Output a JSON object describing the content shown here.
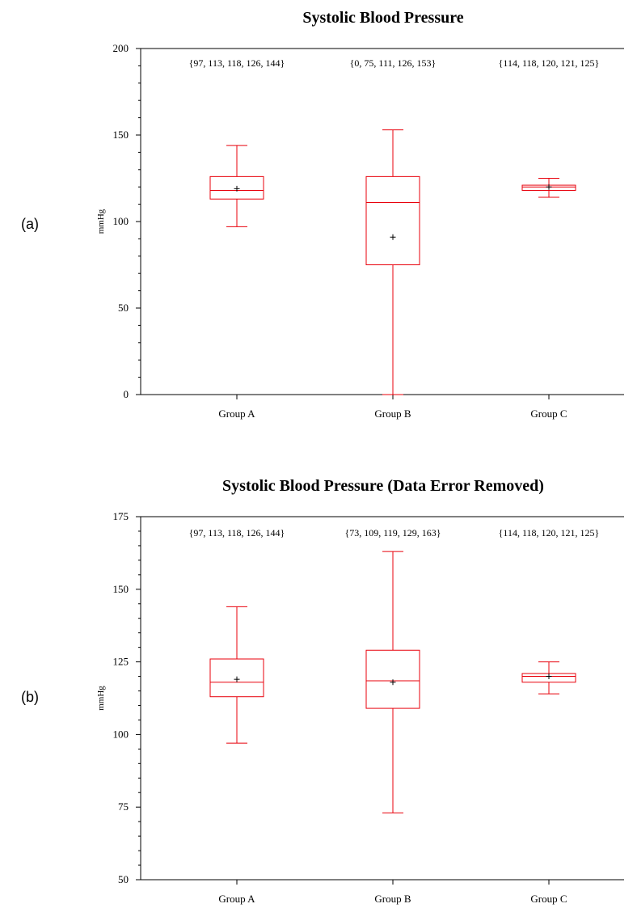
{
  "chart_data": [
    {
      "type": "boxplot",
      "panel_label": "(a)",
      "title": "Systolic Blood Pressure",
      "ylabel": "mmHg",
      "xlabel": "",
      "ylim": [
        0,
        200
      ],
      "yticks": [
        0,
        50,
        100,
        150,
        200
      ],
      "grid": false,
      "colors": {
        "box": "#e8000b",
        "mean_marker": "#000000"
      },
      "categories": [
        "Group A",
        "Group B",
        "Group C"
      ],
      "boxes": [
        {
          "category": "Group A",
          "min": 97,
          "q1": 113,
          "median": 118,
          "q3": 126,
          "max": 144,
          "mean": 119,
          "annotation": "{97, 113, 118, 126, 144}"
        },
        {
          "category": "Group B",
          "min": 0,
          "q1": 75,
          "median": 111,
          "q3": 126,
          "max": 153,
          "mean": 91,
          "annotation": "{0, 75, 111, 126, 153}"
        },
        {
          "category": "Group C",
          "min": 114,
          "q1": 118,
          "median": 120,
          "q3": 121,
          "max": 125,
          "mean": 120,
          "annotation": "{114, 118, 120, 121, 125}"
        }
      ]
    },
    {
      "type": "boxplot",
      "panel_label": "(b)",
      "title": "Systolic Blood Pressure (Data Error Removed)",
      "ylabel": "mmHg",
      "xlabel": "",
      "ylim": [
        50,
        175
      ],
      "yticks": [
        50,
        75,
        100,
        125,
        150,
        175
      ],
      "grid": false,
      "colors": {
        "box": "#e8000b",
        "mean_marker": "#000000"
      },
      "categories": [
        "Group A",
        "Group B",
        "Group C"
      ],
      "boxes": [
        {
          "category": "Group A",
          "min": 97,
          "q1": 113,
          "median": 118,
          "q3": 126,
          "max": 144,
          "mean": 119,
          "annotation": "{97, 113, 118, 126, 144}"
        },
        {
          "category": "Group B",
          "min": 73,
          "q1": 109,
          "median": 118.5,
          "q3": 129,
          "max": 163,
          "mean": 118,
          "annotation": "{73, 109, 119, 129, 163}"
        },
        {
          "category": "Group C",
          "min": 114,
          "q1": 118,
          "median": 120,
          "q3": 121,
          "max": 125,
          "mean": 120,
          "annotation": "{114, 118, 120, 121, 125}"
        }
      ]
    }
  ]
}
